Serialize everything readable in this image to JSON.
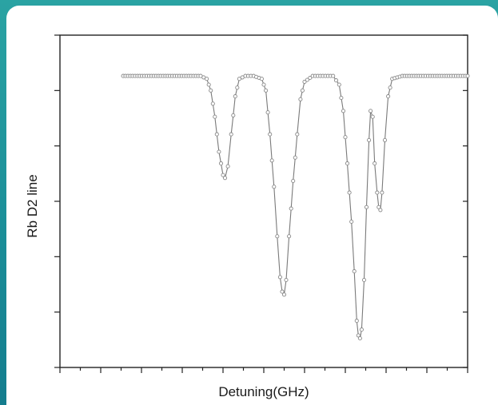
{
  "chart_data": {
    "type": "line",
    "title": "",
    "xlabel": "Detuning(GHz)",
    "ylabel": "Rb D2 line",
    "xlim": [
      0,
      10
    ],
    "ylim": [
      0,
      1.14
    ],
    "x_tick_labels": [],
    "y_tick_labels": [],
    "grid": false,
    "legend": "none",
    "marker": "open-circle",
    "line_color": "#7a7a7a",
    "marker_color": "#888888",
    "series": [
      {
        "values": [
          [
            1.55,
            1.0
          ],
          [
            1.9,
            1.0
          ],
          [
            2.3,
            1.0
          ],
          [
            2.7,
            1.0
          ],
          [
            3.1,
            1.0
          ],
          [
            3.45,
            1.0
          ],
          [
            3.6,
            0.99
          ],
          [
            3.7,
            0.95
          ],
          [
            3.8,
            0.86
          ],
          [
            3.9,
            0.74
          ],
          [
            4.0,
            0.66
          ],
          [
            4.05,
            0.65
          ],
          [
            4.12,
            0.69
          ],
          [
            4.2,
            0.8
          ],
          [
            4.3,
            0.93
          ],
          [
            4.4,
            0.99
          ],
          [
            4.55,
            1.0
          ],
          [
            4.75,
            1.0
          ],
          [
            4.95,
            0.99
          ],
          [
            5.05,
            0.95
          ],
          [
            5.15,
            0.8
          ],
          [
            5.25,
            0.62
          ],
          [
            5.33,
            0.45
          ],
          [
            5.4,
            0.31
          ],
          [
            5.45,
            0.26
          ],
          [
            5.5,
            0.25
          ],
          [
            5.55,
            0.3
          ],
          [
            5.62,
            0.45
          ],
          [
            5.72,
            0.64
          ],
          [
            5.82,
            0.8
          ],
          [
            5.9,
            0.92
          ],
          [
            6.0,
            0.98
          ],
          [
            6.2,
            1.0
          ],
          [
            6.45,
            1.0
          ],
          [
            6.7,
            1.0
          ],
          [
            6.85,
            0.97
          ],
          [
            6.95,
            0.88
          ],
          [
            7.05,
            0.7
          ],
          [
            7.15,
            0.5
          ],
          [
            7.22,
            0.33
          ],
          [
            7.28,
            0.16
          ],
          [
            7.32,
            0.11
          ],
          [
            7.36,
            0.1
          ],
          [
            7.4,
            0.13
          ],
          [
            7.46,
            0.3
          ],
          [
            7.52,
            0.55
          ],
          [
            7.58,
            0.78
          ],
          [
            7.62,
            0.88
          ],
          [
            7.67,
            0.86
          ],
          [
            7.72,
            0.7
          ],
          [
            7.78,
            0.6
          ],
          [
            7.82,
            0.55
          ],
          [
            7.86,
            0.54
          ],
          [
            7.9,
            0.6
          ],
          [
            7.97,
            0.78
          ],
          [
            8.05,
            0.93
          ],
          [
            8.15,
            0.99
          ],
          [
            8.4,
            1.0
          ],
          [
            8.8,
            1.0
          ],
          [
            9.2,
            1.0
          ],
          [
            9.6,
            1.0
          ],
          [
            10.0,
            1.0
          ]
        ]
      }
    ]
  }
}
